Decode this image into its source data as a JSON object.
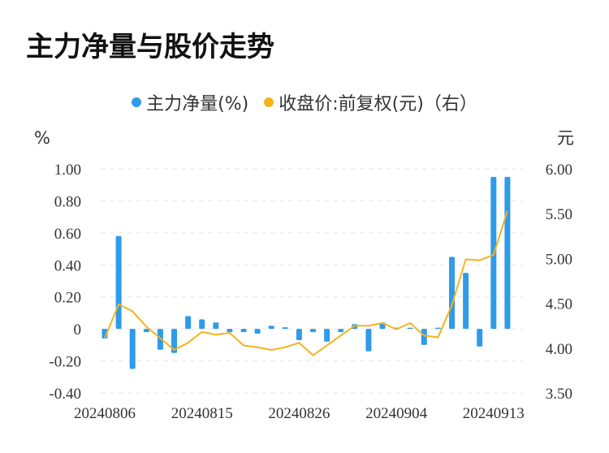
{
  "title": "主力净量与股价走势",
  "legend": {
    "series1": "主力净量(%)",
    "series2": "收盘价:前复权(元)（右）"
  },
  "colors": {
    "bar": "#2f9bea",
    "line": "#f5b31c",
    "grid": "#e6e6e6"
  },
  "chart_data": {
    "type": "bar",
    "left_unit": "%",
    "right_unit": "元",
    "left_ylim": [
      -0.4,
      1.0
    ],
    "right_ylim": [
      3.5,
      6.0
    ],
    "left_ticks": [
      "1.00",
      "0.80",
      "0.60",
      "0.40",
      "0.20",
      "0",
      "-0.20",
      "-0.40"
    ],
    "right_ticks": [
      "6.00",
      "5.50",
      "5.00",
      "4.50",
      "4.00",
      "3.50"
    ],
    "x_labels": [
      "20240806",
      "20240815",
      "20240826",
      "20240904",
      "20240913"
    ],
    "x_label_index": [
      0,
      7,
      14,
      21,
      28
    ],
    "series": [
      {
        "name": "主力净量(%)",
        "kind": "bar",
        "values": [
          -0.06,
          0.58,
          -0.25,
          -0.02,
          -0.13,
          -0.15,
          0.08,
          0.06,
          0.04,
          -0.02,
          -0.02,
          -0.03,
          0.02,
          0.01,
          -0.07,
          -0.02,
          -0.08,
          -0.02,
          0.03,
          -0.14,
          0.04,
          0.0,
          0.0,
          -0.1,
          0.0,
          0.45,
          0.35,
          -0.11,
          0.95,
          0.95
        ]
      },
      {
        "name": "收盘价:前复权(元)（右）",
        "kind": "line",
        "values": [
          4.11,
          4.49,
          4.41,
          4.24,
          4.11,
          3.98,
          4.06,
          4.18,
          4.15,
          4.17,
          4.03,
          4.01,
          3.98,
          4.01,
          4.06,
          3.92,
          4.03,
          4.14,
          4.25,
          4.25,
          4.28,
          4.21,
          4.28,
          4.14,
          4.12,
          4.48,
          4.99,
          4.98,
          5.04,
          5.53
        ]
      }
    ]
  }
}
